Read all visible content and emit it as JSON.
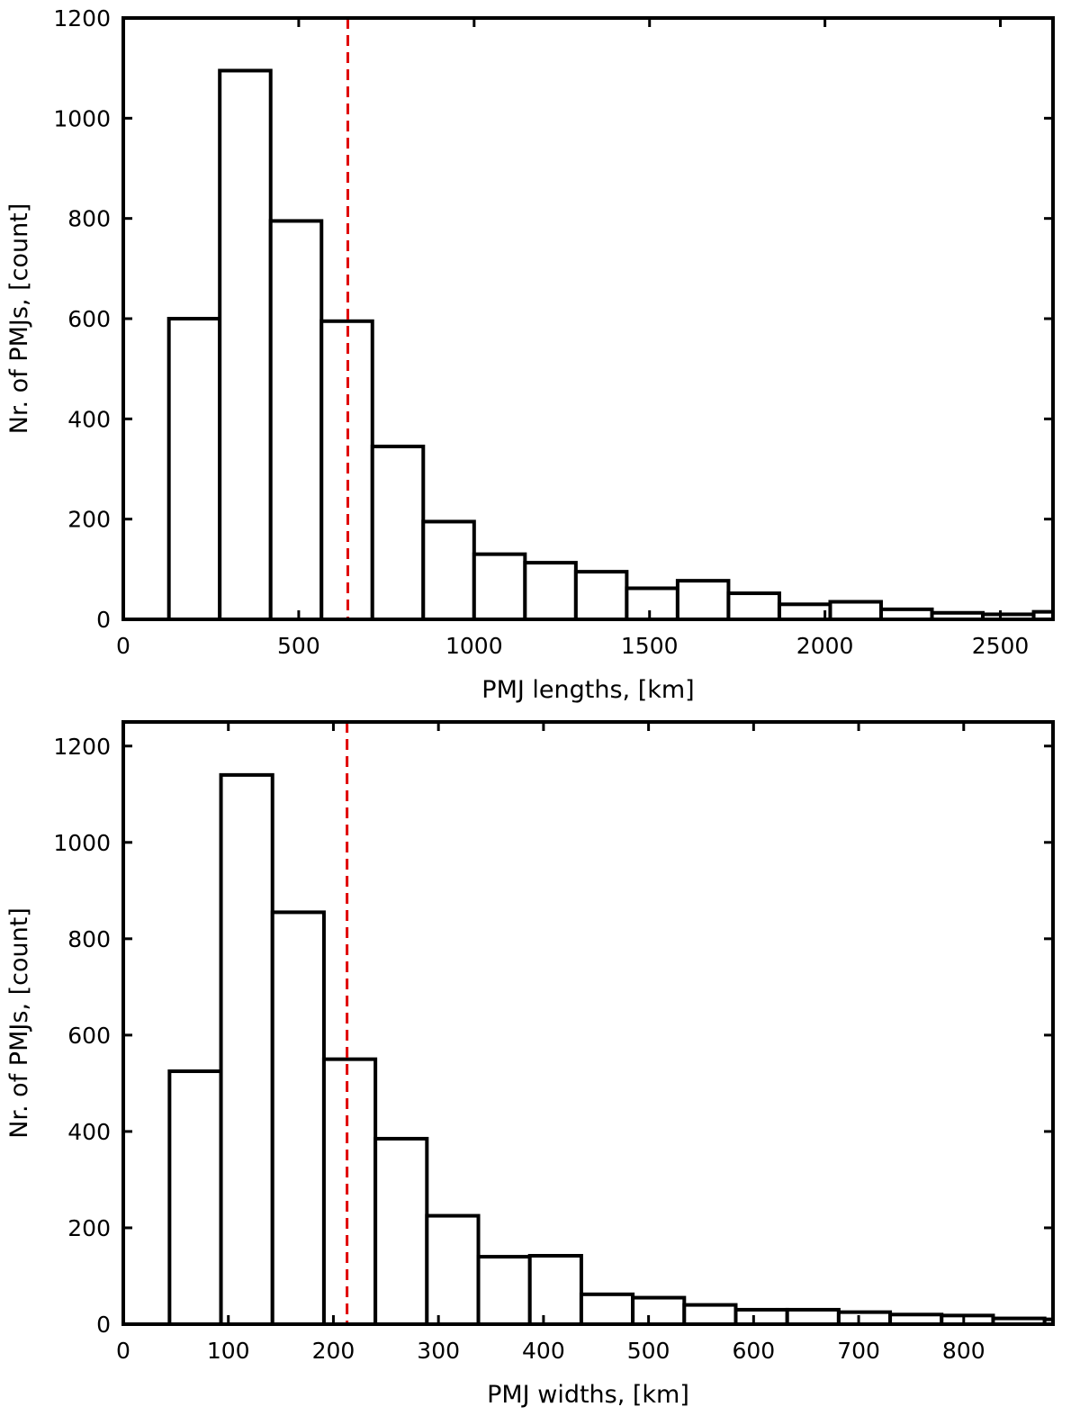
{
  "chart_data": [
    {
      "type": "bar",
      "subtype": "histogram",
      "xlabel": "PMJ lengths, [km]",
      "ylabel": "Nr. of PMJs, [count]",
      "xlim": [
        0,
        2650
      ],
      "ylim": [
        0,
        1200
      ],
      "xticks": [
        0,
        500,
        1000,
        1500,
        2000,
        2500
      ],
      "xtick_labels": [
        "0",
        "500",
        "1000",
        "1500",
        "2000",
        "2500"
      ],
      "yticks": [
        0,
        200,
        400,
        600,
        800,
        1000,
        1200
      ],
      "ytick_labels": [
        "0",
        "200",
        "400",
        "600",
        "800",
        "1000",
        "1200"
      ],
      "bin_edges": [
        130,
        275,
        420,
        565,
        710,
        855,
        1000,
        1145,
        1290,
        1435,
        1580,
        1725,
        1870,
        2015,
        2160,
        2305,
        2450,
        2595,
        2650
      ],
      "values": [
        600,
        1095,
        795,
        595,
        345,
        195,
        130,
        113,
        95,
        62,
        77,
        52,
        30,
        35,
        20,
        13,
        10,
        15
      ],
      "reference_line": {
        "x": 640,
        "style": "dashed",
        "color": "#e00000"
      },
      "bar_fill": "#ffffff",
      "bar_edge": "#000000",
      "grid": false
    },
    {
      "type": "bar",
      "subtype": "histogram",
      "xlabel": "PMJ widths, [km]",
      "ylabel": "Nr. of PMJs, [count]",
      "xlim": [
        0,
        885
      ],
      "ylim": [
        0,
        1250
      ],
      "xticks": [
        0,
        100,
        200,
        300,
        400,
        500,
        600,
        700,
        800
      ],
      "xtick_labels": [
        "0",
        "100",
        "200",
        "300",
        "400",
        "500",
        "600",
        "700",
        "800"
      ],
      "yticks": [
        0,
        200,
        400,
        600,
        800,
        1000,
        1200
      ],
      "ytick_labels": [
        "0",
        "200",
        "400",
        "600",
        "800",
        "1000",
        "1200"
      ],
      "bin_edges": [
        44,
        93,
        142,
        191,
        240,
        289,
        338,
        387,
        436,
        485,
        534,
        583,
        632,
        681,
        730,
        779,
        828,
        877,
        885
      ],
      "values": [
        525,
        1140,
        855,
        550,
        385,
        225,
        140,
        142,
        62,
        55,
        40,
        30,
        30,
        25,
        20,
        18,
        12,
        10
      ],
      "reference_line": {
        "x": 213,
        "style": "dashed",
        "color": "#e00000"
      },
      "bar_fill": "#ffffff",
      "bar_edge": "#000000",
      "grid": false
    }
  ]
}
